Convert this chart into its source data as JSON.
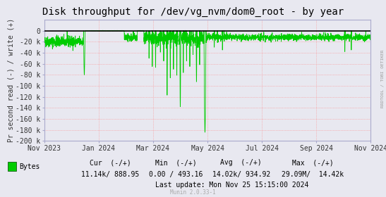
{
  "title": "Disk throughput for /dev/vg_nvm/dom0_root - by year",
  "ylabel": "Pr second read (-) / write (+)",
  "background_color": "#e8e8f0",
  "plot_bg_color": "#e8e8f0",
  "grid_color_h": "#ff8080",
  "grid_color_v": "#ff8080",
  "line_color": "#00cc00",
  "line_color_top": "#000000",
  "ylim": [
    -200000,
    20000
  ],
  "yticks": [
    0,
    -20000,
    -40000,
    -60000,
    -80000,
    -100000,
    -120000,
    -140000,
    -160000,
    -180000,
    -200000
  ],
  "ytick_labels": [
    "0",
    "-20 k",
    "-40 k",
    "-60 k",
    "-80 k",
    "-100 k",
    "-120 k",
    "-140 k",
    "-160 k",
    "-180 k",
    "-200 k"
  ],
  "xtick_labels": [
    "Nov 2023",
    "Jan 2024",
    "Mar 2024",
    "May 2024",
    "Jul 2024",
    "Sep 2024",
    "Nov 2024"
  ],
  "legend_label": "Bytes",
  "legend_color": "#00cc00",
  "cur_neg": "11.14k",
  "cur_pos": "888.95",
  "min_neg": "0.00",
  "min_pos": "493.16",
  "avg_neg": "14.02k",
  "avg_pos": "934.92",
  "max_neg": "29.09M",
  "max_pos": "14.42k",
  "last_update": "Last update: Mon Nov 25 15:15:00 2024",
  "munin_version": "Munin 2.0.33-1",
  "rrdtool_label": "RRDTOOL / TOBI OETIKER",
  "title_fontsize": 10,
  "axis_fontsize": 7,
  "label_fontsize": 7,
  "stats_fontsize": 7,
  "border_color": "#aaaacc"
}
